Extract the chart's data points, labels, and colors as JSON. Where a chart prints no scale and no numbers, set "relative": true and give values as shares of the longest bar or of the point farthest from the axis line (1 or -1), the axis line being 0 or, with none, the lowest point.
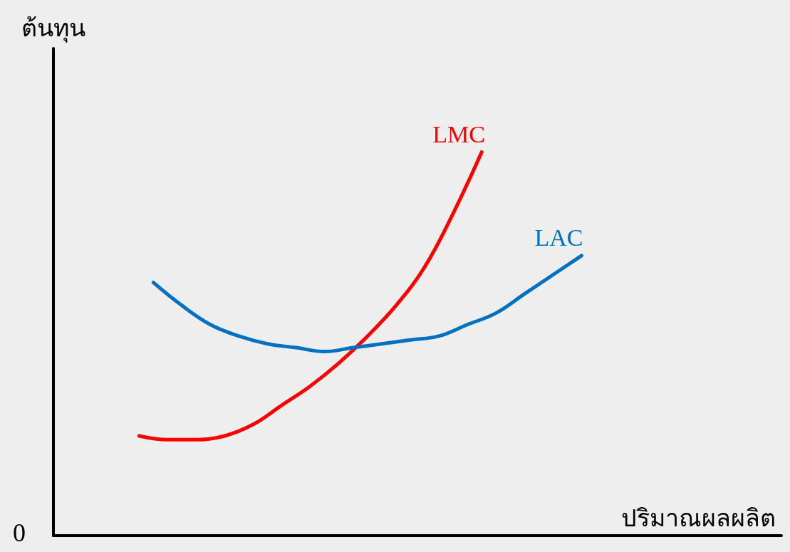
{
  "chart_data": {
    "type": "line",
    "relative": true,
    "xlabel": "ปริมาณผลผลิต",
    "ylabel": "ต้นทุน",
    "annotations": [
      "0"
    ],
    "marker": "none",
    "categories": [
      null,
      null,
      null,
      null,
      null,
      null,
      null,
      null,
      null,
      null,
      null,
      null,
      null,
      null,
      null,
      null,
      null,
      null,
      null,
      null,
      null,
      null,
      null,
      null,
      null,
      null,
      null,
      null,
      null,
      null,
      null,
      null,
      null,
      null,
      null,
      null,
      null,
      null,
      null,
      null,
      null,
      null,
      null,
      null,
      null,
      null,
      null,
      null,
      null,
      null,
      null,
      null
    ],
    "series": [
      {
        "name": "LMC",
        "color": "#ff0000",
        "values": [
          null,
          null,
          null,
          null,
          null,
          null,
          0.26,
          null,
          0.25,
          null,
          0.25,
          null,
          0.26,
          null,
          0.29,
          null,
          0.34,
          null,
          0.39,
          null,
          0.45,
          null,
          0.52,
          null,
          0.6,
          null,
          0.7,
          null,
          0.84,
          null,
          1.0,
          null,
          null,
          null,
          null,
          null,
          null,
          null,
          null,
          null,
          null,
          null,
          null,
          null,
          null,
          null,
          null,
          null,
          null,
          null,
          null,
          null
        ]
      },
      {
        "name": "LAC",
        "color": "#0070c0",
        "values": [
          null,
          null,
          null,
          null,
          null,
          null,
          null,
          0.66,
          null,
          0.6,
          null,
          0.55,
          null,
          0.52,
          null,
          0.5,
          null,
          0.49,
          null,
          0.48,
          null,
          0.49,
          null,
          0.5,
          null,
          0.51,
          null,
          0.52,
          null,
          0.55,
          null,
          0.58,
          null,
          0.63,
          null,
          0.68,
          null,
          0.73,
          null,
          null,
          null,
          null,
          null,
          null,
          null,
          null,
          null,
          null,
          null,
          null,
          null,
          null
        ]
      }
    ]
  }
}
